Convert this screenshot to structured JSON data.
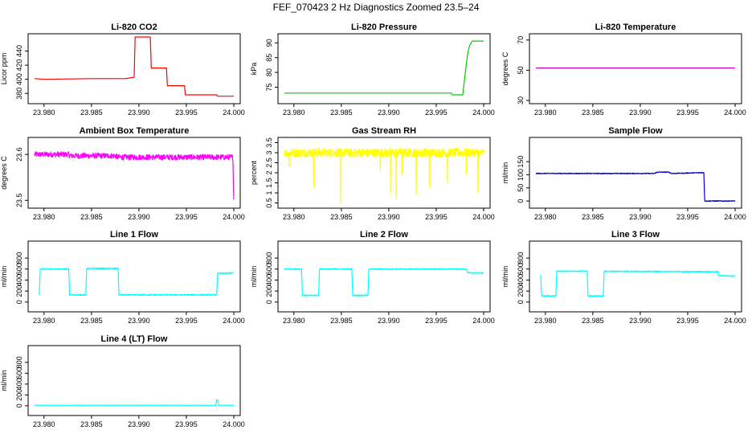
{
  "title": "FEF_070423  2 Hz Diagnostics Zoomed 23.5–24",
  "chart_data": [
    {
      "id": "co2",
      "type": "line",
      "title": "Li-820 CO2",
      "ylabel": "Licor ppm",
      "xlim": [
        23.979,
        24.0
      ],
      "ylim": [
        370,
        460
      ],
      "xticks": [
        23.98,
        23.985,
        23.99,
        23.995,
        24.0
      ],
      "xtick_labels": [
        "23.980",
        "23.985",
        "23.990",
        "23.995",
        "24.000"
      ],
      "yticks": [
        380,
        400,
        420,
        440
      ],
      "ytick_labels": [
        "380",
        "400",
        "420",
        "440"
      ],
      "color": "#ff0000",
      "step": true,
      "x": [
        23.979,
        23.98,
        23.985,
        23.9886,
        23.9895,
        23.9896,
        23.9912,
        23.9913,
        23.9929,
        23.993,
        23.9948,
        23.9949,
        23.9982,
        23.9983,
        24.0
      ],
      "y": [
        401,
        400,
        401,
        401,
        403,
        460,
        460,
        416,
        416,
        391,
        391,
        378,
        378,
        376,
        376
      ]
    },
    {
      "id": "pressure",
      "type": "line",
      "title": "Li-820 Pressure",
      "ylabel": "kPa",
      "xlim": [
        23.979,
        24.0
      ],
      "ylim": [
        70.5,
        92
      ],
      "xticks": [
        23.98,
        23.985,
        23.99,
        23.995,
        24.0
      ],
      "xtick_labels": [
        "23.980",
        "23.985",
        "23.990",
        "23.995",
        "24.000"
      ],
      "yticks": [
        75,
        80,
        85,
        90
      ],
      "ytick_labels": [
        "75",
        "80",
        "85",
        "90"
      ],
      "color": "#00cc00",
      "step": false,
      "x": [
        23.979,
        23.9966,
        23.9967,
        23.9978,
        23.9981,
        23.9983,
        23.9985,
        23.9988,
        24.0
      ],
      "y": [
        73,
        73,
        72.4,
        72.4,
        81,
        86,
        89,
        90.6,
        90.6
      ]
    },
    {
      "id": "temperature",
      "type": "line",
      "title": "Li-820 Temperature",
      "ylabel": "degrees C",
      "xlim": [
        23.979,
        24.0
      ],
      "ylim": [
        30,
        72
      ],
      "xticks": [
        23.98,
        23.985,
        23.99,
        23.995,
        24.0
      ],
      "xtick_labels": [
        "23.980",
        "23.985",
        "23.990",
        "23.995",
        "24.000"
      ],
      "yticks": [
        30,
        50,
        70
      ],
      "ytick_labels": [
        "30",
        "50",
        "70"
      ],
      "color": "#cc00cc",
      "step": false,
      "x": [
        23.979,
        24.0
      ],
      "y": [
        51.5,
        51.5
      ]
    },
    {
      "id": "ambient",
      "type": "line",
      "title": "Ambient Box Temperature",
      "ylabel": "degrees C",
      "xlim": [
        23.979,
        24.0
      ],
      "ylim": [
        23.49,
        23.63
      ],
      "xticks": [
        23.98,
        23.985,
        23.99,
        23.995,
        24.0
      ],
      "xtick_labels": [
        "23.980",
        "23.985",
        "23.990",
        "23.995",
        "24.000"
      ],
      "yticks": [
        23.5,
        23.6
      ],
      "ytick_labels": [
        "23.5",
        "23.6"
      ],
      "color": "#ff00ff",
      "step": false,
      "x": [
        23.979,
        23.9826,
        23.9827,
        23.9876,
        23.9877,
        23.9999,
        24.0
      ],
      "y": [
        23.6,
        23.6,
        23.597,
        23.597,
        23.594,
        23.594,
        23.502
      ],
      "noise": 0.006
    },
    {
      "id": "rh",
      "type": "line",
      "title": "Gas Stream RH",
      "ylabel": "percent",
      "xlim": [
        23.979,
        24.0
      ],
      "ylim": [
        0.4,
        3.6
      ],
      "xticks": [
        23.98,
        23.985,
        23.99,
        23.995,
        24.0
      ],
      "xtick_labels": [
        "23.980",
        "23.985",
        "23.990",
        "23.995",
        "24.000"
      ],
      "yticks": [
        0.5,
        1.0,
        1.5,
        2.0,
        2.5,
        3.0,
        3.5
      ],
      "ytick_labels": [
        "0.5",
        "1",
        "1.5",
        "2",
        "2.5",
        "3",
        "3.5"
      ],
      "color": "#ffff00",
      "step": false,
      "x": [
        23.979,
        24.0
      ],
      "y": [
        3.0,
        3.0
      ],
      "noise": 0.22,
      "spikes": [
        [
          23.9795,
          2.3
        ],
        [
          23.9821,
          1.3
        ],
        [
          23.9849,
          0.5
        ],
        [
          23.9891,
          2.1
        ],
        [
          23.9902,
          1.0
        ],
        [
          23.9908,
          0.7
        ],
        [
          23.9914,
          1.9
        ],
        [
          23.9929,
          0.9
        ],
        [
          23.9943,
          1.3
        ],
        [
          23.9962,
          1.5
        ],
        [
          23.9982,
          1.9
        ],
        [
          23.9994,
          1.0
        ]
      ]
    },
    {
      "id": "sample-flow",
      "type": "line",
      "title": "Sample Flow",
      "ylabel": "ml/min",
      "xlim": [
        23.979,
        24.0
      ],
      "ylim": [
        -15,
        230
      ],
      "xticks": [
        23.98,
        23.985,
        23.99,
        23.995,
        24.0
      ],
      "xtick_labels": [
        "23.980",
        "23.985",
        "23.990",
        "23.995",
        "24.000"
      ],
      "yticks": [
        0,
        50,
        100,
        150
      ],
      "ytick_labels": [
        "0",
        "50",
        "100",
        "150"
      ],
      "color": "#0000cc",
      "step": false,
      "x": [
        23.979,
        23.9915,
        23.9918,
        23.993,
        23.9933,
        23.9966,
        23.9967,
        23.9968,
        24.0
      ],
      "y": [
        105,
        105,
        110,
        110,
        105,
        108,
        108,
        0,
        0
      ],
      "noise": 1.5
    },
    {
      "id": "line1",
      "type": "line",
      "title": "Line 1 Flow",
      "ylabel": "ml/min",
      "xlim": [
        23.979,
        24.0
      ],
      "ylim": [
        -120,
        1050
      ],
      "xticks": [
        23.98,
        23.985,
        23.99,
        23.995,
        24.0
      ],
      "xtick_labels": [
        "23.980",
        "23.985",
        "23.990",
        "23.995",
        "24.000"
      ],
      "yticks": [
        0,
        200,
        400,
        600,
        800
      ],
      "ytick_labels": [
        "0",
        "200",
        "400",
        "600",
        "800"
      ],
      "color": "#00ffff",
      "step": false,
      "x": [
        23.9795,
        23.9796,
        23.9826,
        23.9827,
        23.9844,
        23.9845,
        23.9878,
        23.9879,
        23.9982,
        23.9983,
        24.0
      ],
      "y": [
        120,
        600,
        600,
        130,
        130,
        610,
        610,
        130,
        130,
        520,
        530
      ],
      "noise": 10
    },
    {
      "id": "line2",
      "type": "line",
      "title": "Line 2 Flow",
      "ylabel": "ml/min",
      "xlim": [
        23.979,
        24.0
      ],
      "ylim": [
        -120,
        1050
      ],
      "xticks": [
        23.98,
        23.985,
        23.99,
        23.995,
        24.0
      ],
      "xtick_labels": [
        "23.980",
        "23.985",
        "23.990",
        "23.995",
        "24.000"
      ],
      "yticks": [
        0,
        200,
        400,
        600,
        800
      ],
      "ytick_labels": [
        "0",
        "200",
        "400",
        "600",
        "800"
      ],
      "color": "#00ffff",
      "step": false,
      "x": [
        23.979,
        23.9808,
        23.9809,
        23.9826,
        23.9827,
        23.9861,
        23.9862,
        23.9878,
        23.9879,
        23.9982,
        23.9983,
        24.0
      ],
      "y": [
        600,
        600,
        120,
        120,
        600,
        600,
        120,
        120,
        600,
        600,
        530,
        530
      ],
      "noise": 10
    },
    {
      "id": "line3",
      "type": "line",
      "title": "Line 3 Flow",
      "ylabel": "ml/min",
      "xlim": [
        23.979,
        24.0
      ],
      "ylim": [
        -120,
        1050
      ],
      "xticks": [
        23.98,
        23.985,
        23.99,
        23.995,
        24.0
      ],
      "xtick_labels": [
        "23.980",
        "23.985",
        "23.990",
        "23.995",
        "24.000"
      ],
      "yticks": [
        0,
        200,
        400,
        600,
        800
      ],
      "ytick_labels": [
        "0",
        "200",
        "400",
        "600",
        "800"
      ],
      "color": "#00ffff",
      "step": false,
      "x": [
        23.9795,
        23.9796,
        23.9797,
        23.9811,
        23.9812,
        23.9844,
        23.9845,
        23.9861,
        23.9862,
        23.9982,
        23.9983,
        24.0
      ],
      "y": [
        500,
        120,
        110,
        110,
        560,
        560,
        110,
        110,
        560,
        550,
        480,
        470
      ],
      "noise": 10
    },
    {
      "id": "line4",
      "type": "line",
      "title": "Line 4 (LT) Flow",
      "ylabel": "ml/min",
      "xlim": [
        23.979,
        24.0
      ],
      "ylim": [
        -120,
        1050
      ],
      "xticks": [
        23.98,
        23.985,
        23.99,
        23.995,
        24.0
      ],
      "xtick_labels": [
        "23.980",
        "23.985",
        "23.990",
        "23.995",
        "24.000"
      ],
      "yticks": [
        0,
        200,
        400,
        600,
        800
      ],
      "ytick_labels": [
        "0",
        "200",
        "400",
        "600",
        "800"
      ],
      "color": "#00ffff",
      "step": false,
      "x": [
        23.979,
        23.9981,
        23.9982,
        23.9983,
        23.9984,
        24.0
      ],
      "y": [
        10,
        10,
        110,
        110,
        10,
        10
      ],
      "noise": 2
    }
  ]
}
